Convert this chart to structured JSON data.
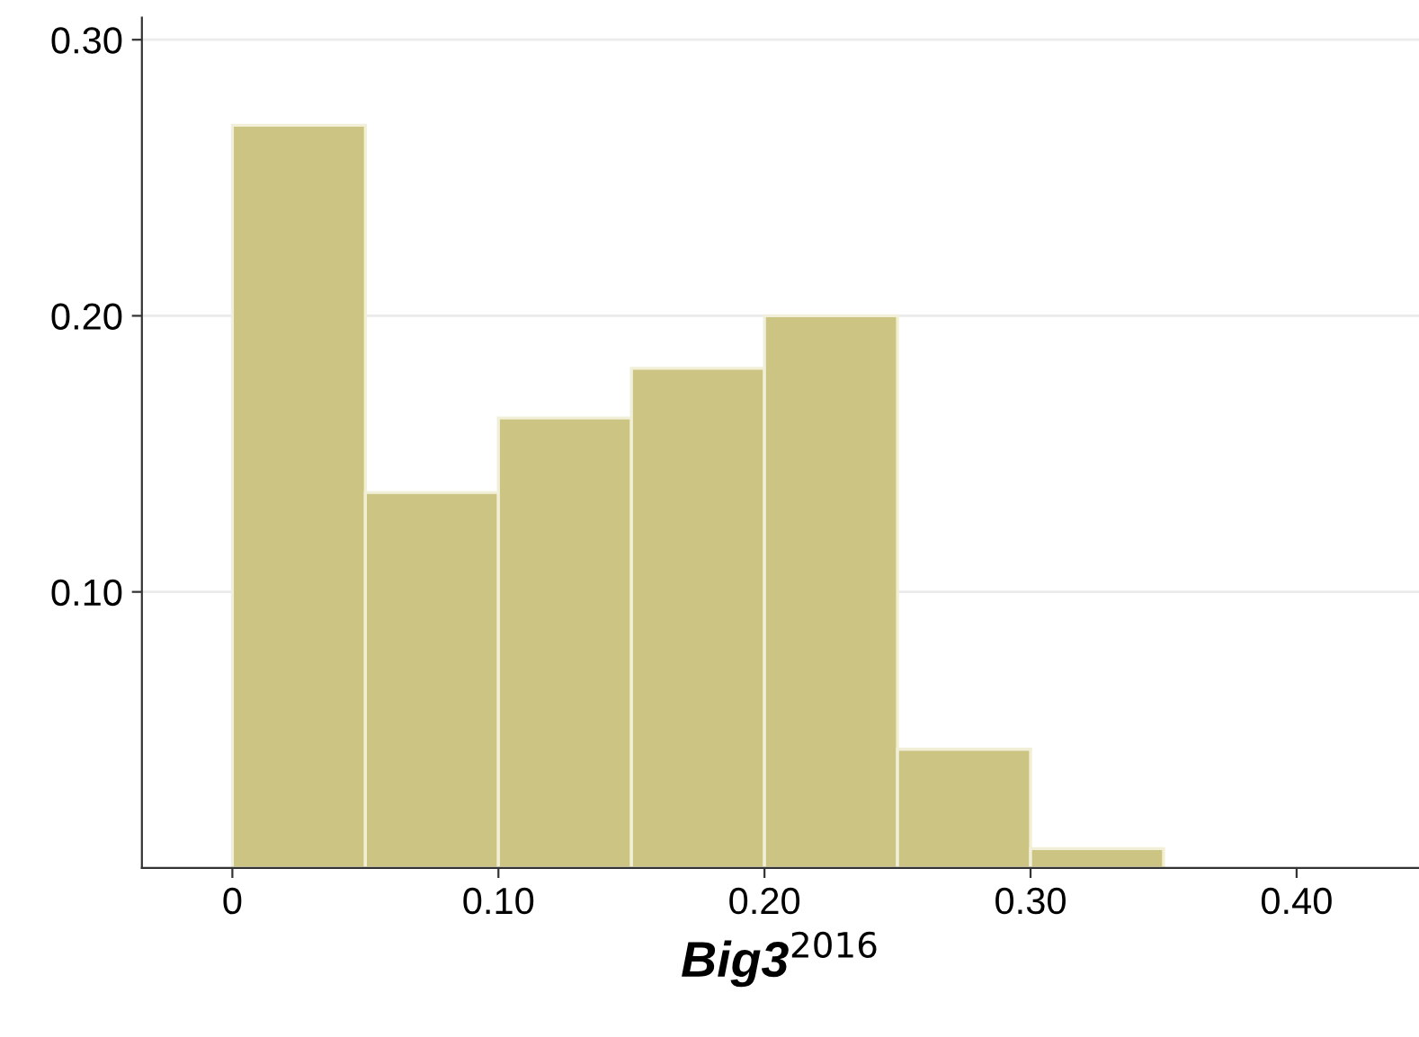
{
  "chart_data": {
    "type": "histogram",
    "xlabel": "Big3$^{2016}$",
    "bins": [
      0,
      0.05,
      0.1,
      0.15,
      0.2,
      0.25,
      0.3,
      0.35
    ],
    "values": [
      0.269,
      0.136,
      0.163,
      0.181,
      0.2,
      0.043,
      0.007
    ],
    "color": "#cbc483",
    "xlim": [
      -0.034,
      0.446
    ],
    "ylim": [
      0,
      0.308
    ],
    "xticks": [
      0,
      {
        "value": 0.1,
        "label": "0.10"
      },
      {
        "value": 0.2,
        "label": "0.20"
      },
      {
        "value": 0.3,
        "label": "0.30"
      },
      {
        "value": 0.4,
        "label": "0.40"
      }
    ],
    "yticks": [
      {
        "value": 0.1,
        "label": "0.10"
      },
      {
        "value": 0.2,
        "label": "0.20"
      },
      {
        "value": 0.3,
        "label": "0.30"
      }
    ],
    "grid": "y"
  }
}
